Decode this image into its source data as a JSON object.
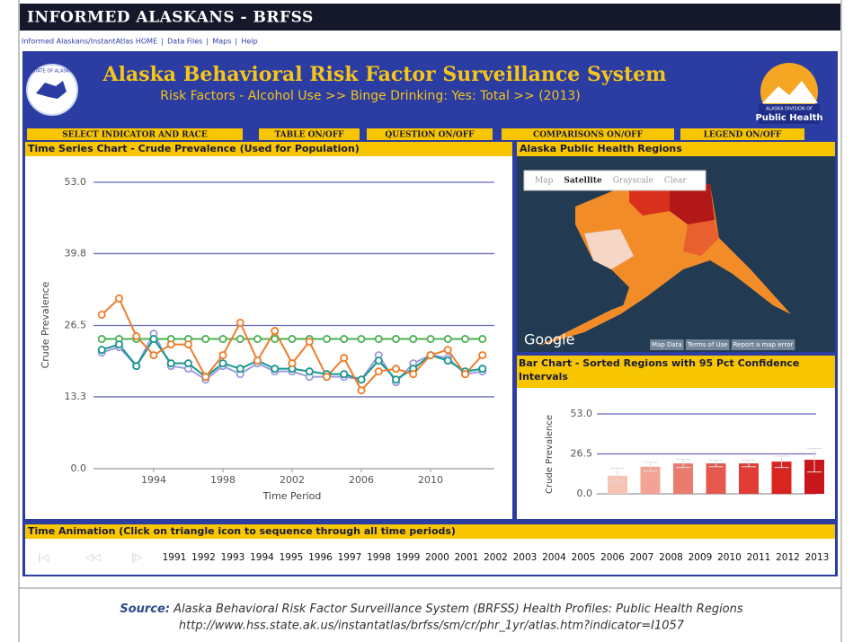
{
  "header": {
    "site_title": "Informed Alaskans - BRFSS",
    "links": [
      "Informed Alaskans/InstantAtlas HOME",
      "Data Files",
      "Maps",
      "Help"
    ],
    "title": "Alaska Behavioral Risk Factor Surveillance System",
    "subtitle": "Risk Factors - Alcohol Use >> Binge Drinking: Yes: Total >> (2013)",
    "logo_left": "STATE OF ALASKA",
    "logo_right": [
      "ALASKA DIVISION OF",
      "Public Health"
    ]
  },
  "buttons": [
    "SELECT INDICATOR AND RACE",
    "TABLE ON/OFF",
    "QUESTION ON/OFF",
    "COMPARISONS ON/OFF",
    "LEGEND ON/OFF"
  ],
  "chart_data": [
    {
      "type": "line",
      "title": "Time Series Chart - Crude Prevalence (Used for Population)",
      "x_label": "Time Period",
      "y_label": "Crude Prevalence",
      "x": [
        1991,
        1992,
        1993,
        1994,
        1995,
        1996,
        1997,
        1998,
        1999,
        2000,
        2001,
        2002,
        2003,
        2004,
        2005,
        2006,
        2007,
        2008,
        2009,
        2010,
        2011,
        2012,
        2013
      ],
      "xlim": [
        1990,
        2014
      ],
      "xticks": [
        1994,
        1998,
        2002,
        2006,
        2010
      ],
      "ylim": [
        0,
        53
      ],
      "yticks": [
        {
          "value": 0,
          "label": "0.0"
        },
        13.3,
        26.5,
        39.8,
        {
          "value": 53,
          "label": "53.0"
        }
      ],
      "grid": true,
      "series": [
        {
          "color": "#4cb050",
          "values": [
            24,
            24,
            24,
            24,
            24,
            24,
            24,
            24,
            24,
            24,
            24,
            24,
            24,
            24,
            24,
            24,
            24,
            24,
            24,
            24,
            24,
            24,
            24
          ]
        },
        {
          "color": "#9b9be0",
          "values": [
            21.5,
            22.5,
            19,
            25,
            19,
            18.5,
            16.5,
            19,
            17.5,
            19.5,
            18,
            18,
            17,
            17,
            17,
            16.5,
            21,
            16,
            19.5,
            21,
            20.5,
            17.5,
            18
          ]
        },
        {
          "color": "#17968a",
          "values": [
            22,
            23,
            19,
            24,
            19.5,
            19.5,
            17,
            19.5,
            18.5,
            20,
            18.5,
            18.5,
            18,
            17.5,
            17.5,
            16.5,
            20,
            16.5,
            18.5,
            21,
            20,
            18,
            18.5
          ]
        },
        {
          "color": "#f07c2a",
          "values": [
            28.5,
            31.5,
            24.5,
            21,
            23,
            23,
            17,
            21,
            27,
            20,
            25.5,
            19.5,
            23.5,
            17,
            20.5,
            14.5,
            18,
            18.5,
            17.5,
            21,
            22,
            17.5,
            21
          ]
        }
      ]
    },
    {
      "type": "bar",
      "title": "Bar Chart - Sorted Regions with 95 Pct Confidence Intervals",
      "y_label": "Crude Prevalence",
      "values": [
        12,
        18,
        20.2,
        20.2,
        20.2,
        21.4,
        22.6
      ],
      "ci_low": [
        8,
        15,
        17.5,
        18,
        18,
        17.5,
        14.5
      ],
      "ci_high": [
        17,
        21,
        23,
        22.5,
        22.5,
        25,
        30
      ],
      "colors": [
        "#f6c3b5",
        "#f2a394",
        "#eb7b6e",
        "#e4584e",
        "#df3d36",
        "#d9251f",
        "#c8161a"
      ],
      "ylim": [
        0,
        53
      ],
      "yticks": [
        {
          "value": 0,
          "label": "0.0"
        },
        26.5,
        {
          "value": 53,
          "label": "53.0"
        }
      ],
      "grid": true
    }
  ],
  "map": {
    "title": "Alaska Public Health Regions",
    "modes": [
      "Map",
      "Satellite",
      "Grayscale",
      "Clear"
    ],
    "brand": "Google",
    "footer": [
      "Map Data",
      "Terms of Use",
      "Report a map error"
    ]
  },
  "animation": {
    "title": "Time Animation (Click on triangle icon to sequence through all time periods)",
    "years": [
      1991,
      1992,
      1993,
      1994,
      1995,
      1996,
      1997,
      1998,
      1999,
      2000,
      2001,
      2002,
      2003,
      2004,
      2005,
      2006,
      2007,
      2008,
      2009,
      2010,
      2011,
      2012,
      2013
    ]
  },
  "source": {
    "label": "Source:",
    "text": "Alaska Behavioral Risk Factor Surveillance System (BRFSS) Health Profiles: Public Health Regions",
    "url": "http://www.hss.state.ak.us/instantatlas/brfss/sm/cr/phr_1yr/atlas.htm?indicator=I1057"
  }
}
